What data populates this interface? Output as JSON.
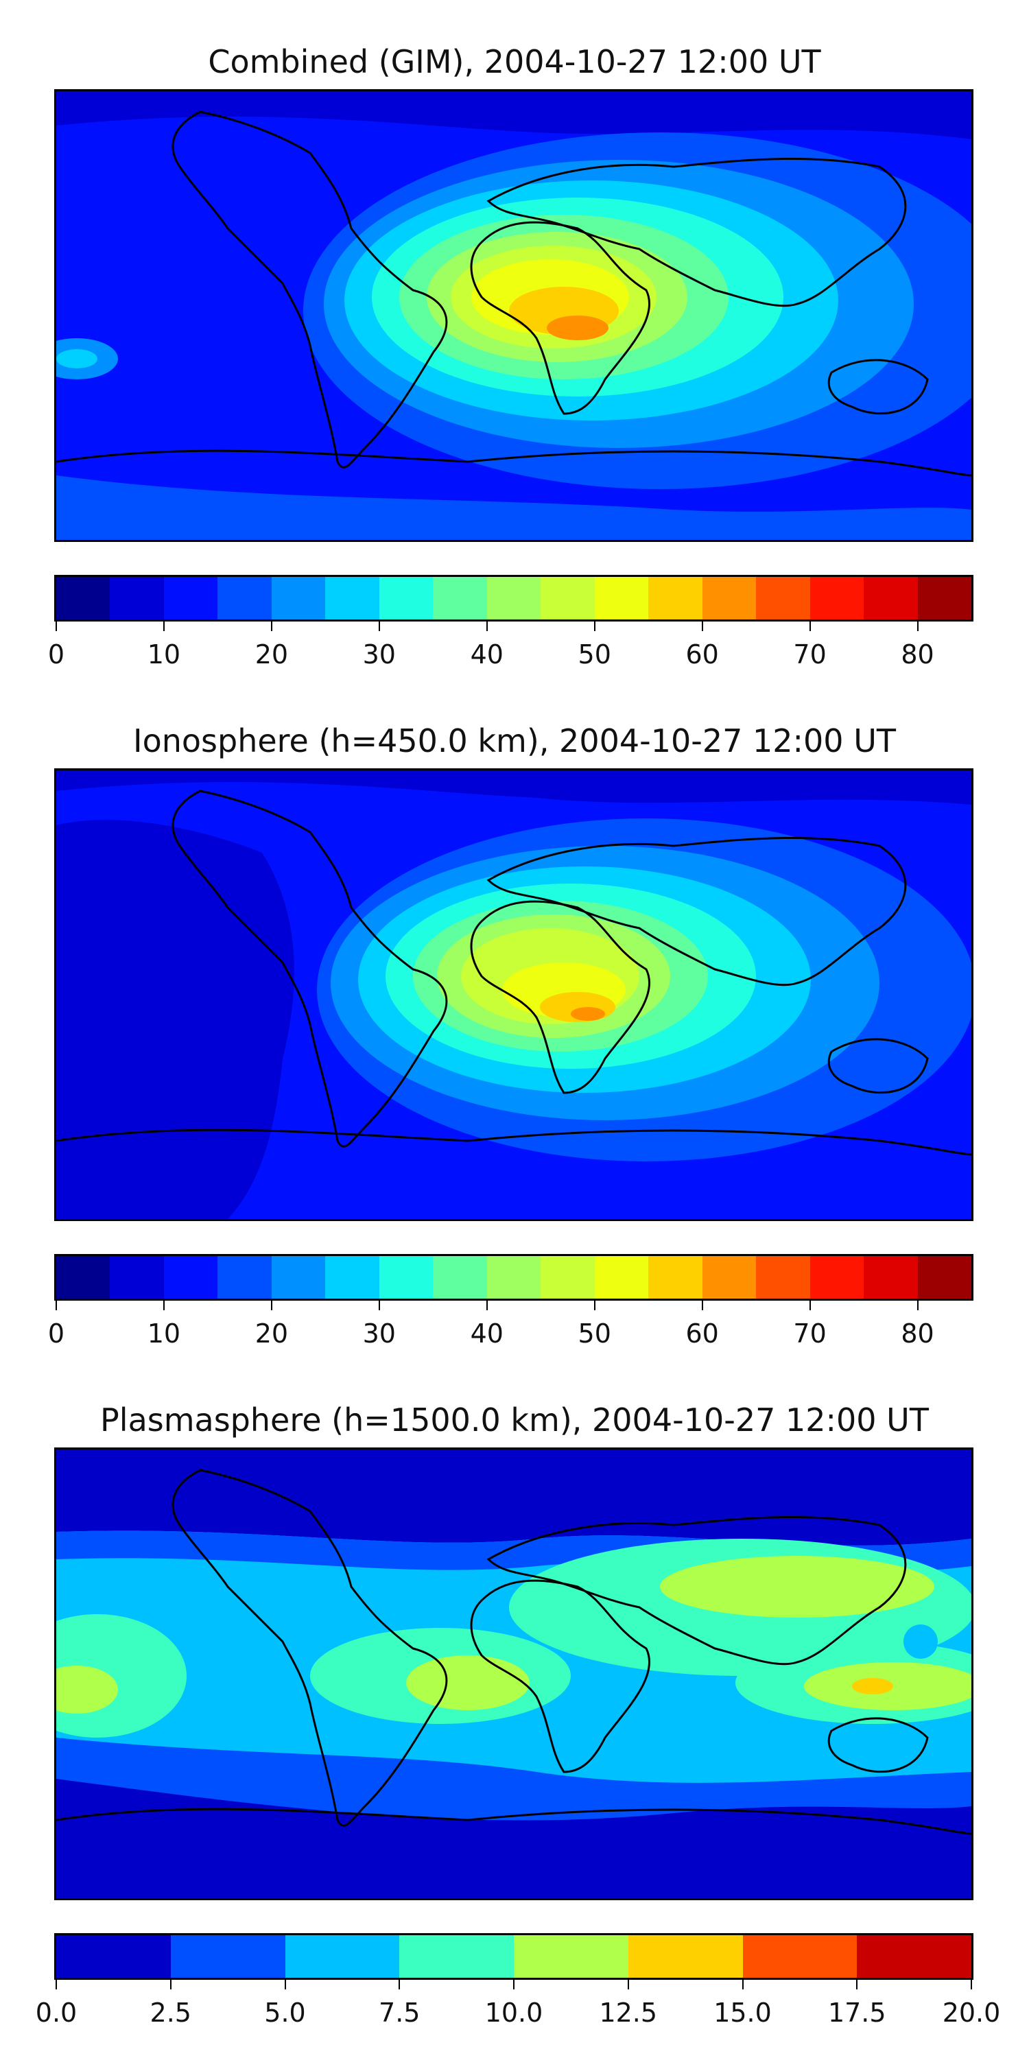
{
  "panels": [
    {
      "title": "Combined (GIM), 2004-10-27 12:00 UT",
      "colorbar": {
        "colors": [
          "#00008f",
          "#0000d6",
          "#0010ff",
          "#0050ff",
          "#0090ff",
          "#00d0ff",
          "#1ffee0",
          "#5fffa0",
          "#9fff60",
          "#c8ff37",
          "#efff10",
          "#ffd000",
          "#ff9000",
          "#ff5000",
          "#ff1500",
          "#df0000",
          "#9c0000"
        ],
        "tick_labels": [
          "0",
          "10",
          "20",
          "30",
          "40",
          "50",
          "60",
          "70",
          "80"
        ],
        "tick_values": [
          0,
          10,
          20,
          30,
          40,
          50,
          60,
          70,
          80
        ],
        "vmin": 0,
        "vmax": 85
      },
      "map_description_levels": "background mostly blue (10-20), equatorial anomaly peak over Africa reaching 60-65"
    },
    {
      "title": "Ionosphere  (h=450.0 km), 2004-10-27 12:00 UT",
      "colorbar": {
        "colors": [
          "#00008f",
          "#0000d6",
          "#0010ff",
          "#0050ff",
          "#0090ff",
          "#00d0ff",
          "#1ffee0",
          "#5fffa0",
          "#9fff60",
          "#c8ff37",
          "#efff10",
          "#ffd000",
          "#ff9000",
          "#ff5000",
          "#ff1500",
          "#df0000",
          "#9c0000"
        ],
        "tick_labels": [
          "0",
          "10",
          "20",
          "30",
          "40",
          "50",
          "60",
          "70",
          "80"
        ],
        "tick_values": [
          0,
          10,
          20,
          30,
          40,
          50,
          60,
          70,
          80
        ],
        "vmin": 0,
        "vmax": 85
      }
    },
    {
      "title": "Plasmasphere (h=1500.0 km), 2004-10-27 12:00 UT",
      "colorbar": {
        "colors": [
          "#0000c8",
          "#0050ff",
          "#00c0ff",
          "#3affc0",
          "#b0ff4a",
          "#ffd000",
          "#ff5000",
          "#c80000"
        ],
        "tick_labels": [
          "0.0",
          "2.5",
          "5.0",
          "7.5",
          "10.0",
          "12.5",
          "15.0",
          "17.5",
          "20.0"
        ],
        "tick_values": [
          0,
          2.5,
          5,
          7.5,
          10,
          12.5,
          15,
          17.5,
          20
        ],
        "vmin": 0,
        "vmax": 20
      }
    }
  ]
}
